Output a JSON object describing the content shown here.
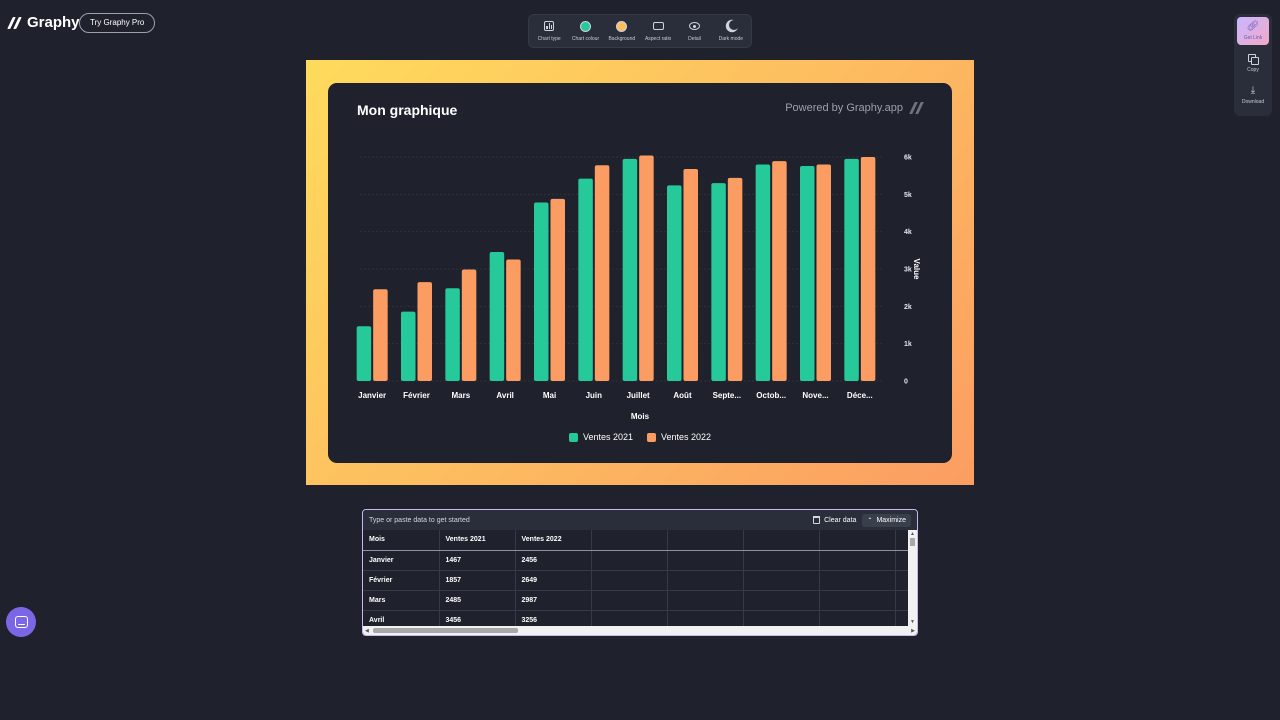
{
  "app": {
    "name": "Graphy",
    "pro_button": "Try Graphy Pro"
  },
  "toolbar": {
    "items": [
      {
        "label": "Chart type",
        "icon": "chart-type-icon"
      },
      {
        "label": "Chart colour",
        "icon": "chart-colour-icon",
        "color": "#25c99a"
      },
      {
        "label": "Background",
        "icon": "background-icon",
        "color": "#fdbd60"
      },
      {
        "label": "Aspect ratio",
        "icon": "aspect-ratio-icon"
      },
      {
        "label": "Detail",
        "icon": "eye-icon"
      },
      {
        "label": "Dark mode",
        "icon": "moon-icon"
      }
    ]
  },
  "side_panel": {
    "items": [
      {
        "label": "Get Link",
        "icon": "link-icon"
      },
      {
        "label": "Copy",
        "icon": "copy-icon"
      },
      {
        "label": "Download",
        "icon": "download-icon"
      }
    ]
  },
  "chart": {
    "title": "Mon graphique",
    "powered_by": "Powered by Graphy.app"
  },
  "chart_data": {
    "type": "bar",
    "title": "Mon graphique",
    "xlabel": "Mois",
    "ylabel": "Value",
    "categories": [
      "Janvier",
      "Février",
      "Mars",
      "Avril",
      "Mai",
      "Juin",
      "Juillet",
      "Août",
      "Septe...",
      "Octob...",
      "Nove...",
      "Déce..."
    ],
    "series": [
      {
        "name": "Ventes 2021",
        "color": "#25c99a",
        "values": [
          1467,
          1857,
          2485,
          3456,
          4780,
          5420,
          5950,
          5240,
          5300,
          5800,
          5760,
          5950
        ]
      },
      {
        "name": "Ventes 2022",
        "color": "#fb9d62",
        "values": [
          2456,
          2649,
          2987,
          3256,
          4880,
          5780,
          6040,
          5680,
          5440,
          5890,
          5800,
          6000
        ]
      }
    ],
    "ylim": [
      0,
      6000
    ],
    "yticks": [
      0,
      1000,
      2000,
      3000,
      4000,
      5000,
      6000
    ],
    "ytick_labels": [
      "0",
      "1k",
      "2k",
      "3k",
      "4k",
      "5k",
      "6k"
    ],
    "y_axis_side": "right",
    "grid": true,
    "legend": "bottom-center"
  },
  "data_panel": {
    "hint": "Type or paste data to get started",
    "clear_label": "Clear data",
    "maximize_label": "Maximize",
    "headers": [
      "Mois",
      "Ventes 2021",
      "Ventes 2022"
    ],
    "rows": [
      [
        "Janvier",
        "1467",
        "2456"
      ],
      [
        "Février",
        "1857",
        "2649"
      ],
      [
        "Mars",
        "2485",
        "2987"
      ],
      [
        "Avril",
        "3456",
        "3256"
      ]
    ]
  }
}
